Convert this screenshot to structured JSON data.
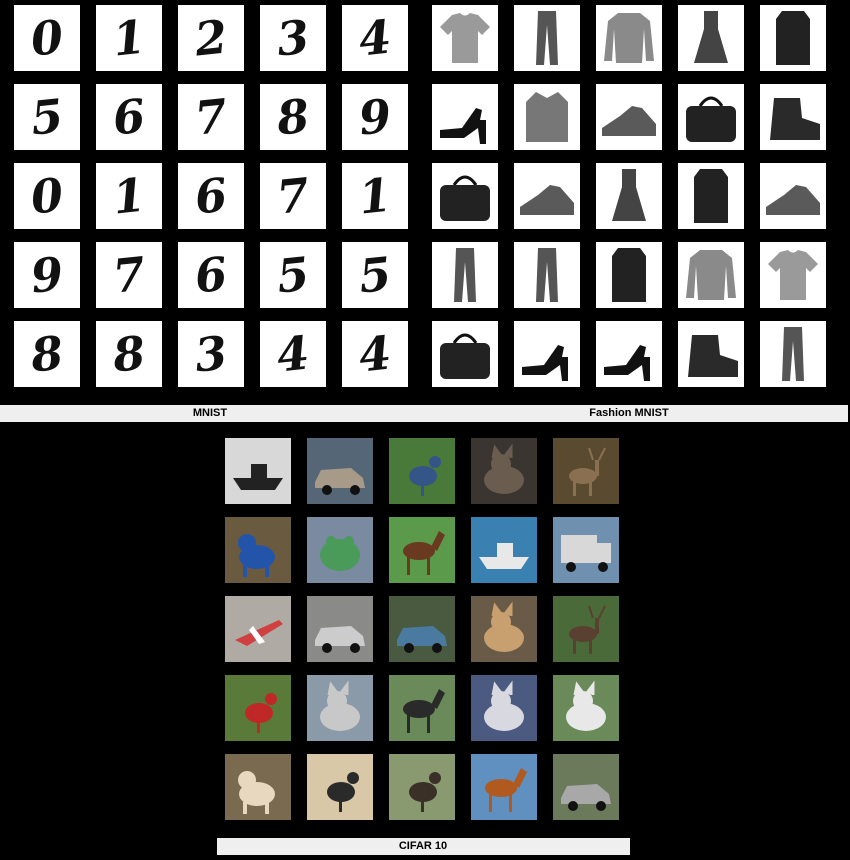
{
  "captions": {
    "mnist": "MNIST",
    "fashion": "Fashion MNIST",
    "cifar": "CIFAR 10"
  },
  "mnist_digits": [
    "0",
    "1",
    "2",
    "3",
    "4",
    "5",
    "6",
    "7",
    "8",
    "9",
    "0",
    "1",
    "6",
    "7",
    "1",
    "9",
    "7",
    "6",
    "5",
    "5",
    "8",
    "8",
    "3",
    "4",
    "4"
  ],
  "fashion_items": [
    "tshirt-icon",
    "trouser-icon",
    "pullover-icon",
    "dress-icon",
    "coat-icon",
    "sandal-icon",
    "shirt-icon",
    "sneaker-icon",
    "bag-icon",
    "ankle-boot-icon",
    "bag-icon",
    "sneaker-icon",
    "dress-icon",
    "coat-icon",
    "sneaker-icon",
    "trouser-icon",
    "trouser-icon",
    "coat-icon",
    "pullover-icon",
    "tshirt-icon",
    "bag-icon",
    "sandal-icon",
    "sandal-icon",
    "ankle-boot-icon",
    "trouser-icon"
  ],
  "cifar_images": [
    {
      "icon": "ship-icon",
      "bg": "#d8d8d8",
      "fg": "#222222"
    },
    {
      "icon": "automobile-icon",
      "bg": "#556677",
      "fg": "#a89a88"
    },
    {
      "icon": "bird-icon",
      "bg": "#4a7a3a",
      "fg": "#335588"
    },
    {
      "icon": "cat-icon",
      "bg": "#3a3530",
      "fg": "#6a5d50"
    },
    {
      "icon": "deer-icon",
      "bg": "#5a4a30",
      "fg": "#8a7050"
    },
    {
      "icon": "dog-icon",
      "bg": "#6a5a40",
      "fg": "#2255aa"
    },
    {
      "icon": "frog-icon",
      "bg": "#7a8aa0",
      "fg": "#4a9a5a"
    },
    {
      "icon": "horse-icon",
      "bg": "#5a9a4a",
      "fg": "#6a3a20"
    },
    {
      "icon": "ship-icon",
      "bg": "#3a80b0",
      "fg": "#e8e8e8"
    },
    {
      "icon": "truck-icon",
      "bg": "#7090b0",
      "fg": "#d8d8d8"
    },
    {
      "icon": "airplane-icon",
      "bg": "#b0aaa4",
      "fg": "#d04040"
    },
    {
      "icon": "automobile-icon",
      "bg": "#8a8a88",
      "fg": "#cccccc"
    },
    {
      "icon": "automobile-icon",
      "bg": "#4a5a40",
      "fg": "#4a7aa0"
    },
    {
      "icon": "cat-icon",
      "bg": "#6a5a48",
      "fg": "#c8a070"
    },
    {
      "icon": "deer-icon",
      "bg": "#4a6a3a",
      "fg": "#5a4030"
    },
    {
      "icon": "bird-icon",
      "bg": "#5a7a3a",
      "fg": "#c02828"
    },
    {
      "icon": "cat-icon",
      "bg": "#8a9aa8",
      "fg": "#c8c8c8"
    },
    {
      "icon": "horse-icon",
      "bg": "#6a8a5a",
      "fg": "#2a2a2a"
    },
    {
      "icon": "cat-icon",
      "bg": "#4a5a80",
      "fg": "#d8d8e0"
    },
    {
      "icon": "cat-icon",
      "bg": "#6a8a5a",
      "fg": "#e8e8e8"
    },
    {
      "icon": "dog-icon",
      "bg": "#7a6a50",
      "fg": "#e8d8c0"
    },
    {
      "icon": "bird-icon",
      "bg": "#d8c8a8",
      "fg": "#2a2a2a"
    },
    {
      "icon": "bird-icon",
      "bg": "#8a9a70",
      "fg": "#3a3028"
    },
    {
      "icon": "horse-icon",
      "bg": "#6090c0",
      "fg": "#b05a20"
    },
    {
      "icon": "automobile-icon",
      "bg": "#6a7a5a",
      "fg": "#a8a8a8"
    }
  ]
}
